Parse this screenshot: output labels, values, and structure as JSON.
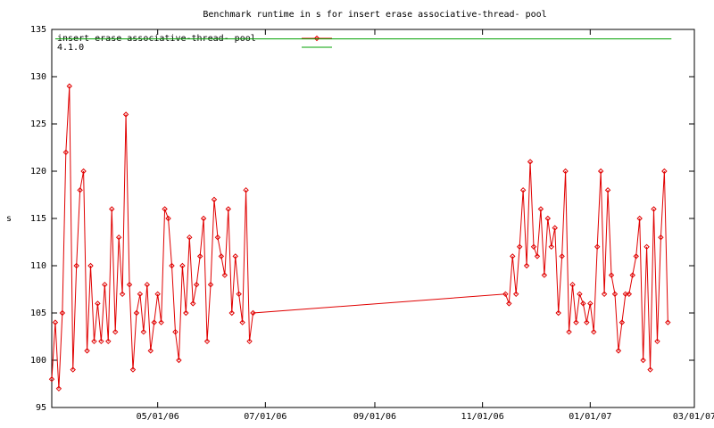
{
  "chart_data": {
    "type": "line",
    "title": "Benchmark runtime in s for insert erase associative-thread-  pool",
    "y_label": "s",
    "xlim": [
      "03/02/06",
      "03/01/07"
    ],
    "xticks": [
      "05/01/06",
      "07/01/06",
      "09/01/06",
      "11/01/06",
      "01/01/07",
      "03/01/07"
    ],
    "ylim": [
      95,
      135
    ],
    "yticks": [
      95,
      100,
      105,
      110,
      115,
      120,
      125,
      130,
      135
    ],
    "legend": "upper left",
    "series": [
      {
        "name": "insert erase associative-thread-  pool",
        "color": "#e00000",
        "text_color": "#8b4513",
        "marker": "diamond",
        "x": [
          "03/02/06",
          "03/04/06",
          "03/06/06",
          "03/08/06",
          "03/10/06",
          "03/12/06",
          "03/14/06",
          "03/16/06",
          "03/18/06",
          "03/20/06",
          "03/22/06",
          "03/24/06",
          "03/26/06",
          "03/28/06",
          "03/30/06",
          "04/01/06",
          "04/03/06",
          "04/05/06",
          "04/07/06",
          "04/09/06",
          "04/11/06",
          "04/13/06",
          "04/15/06",
          "04/17/06",
          "04/19/06",
          "04/21/06",
          "04/23/06",
          "04/25/06",
          "04/27/06",
          "04/29/06",
          "05/01/06",
          "05/03/06",
          "05/05/06",
          "05/07/06",
          "05/09/06",
          "05/11/06",
          "05/13/06",
          "05/15/06",
          "05/17/06",
          "05/19/06",
          "05/21/06",
          "05/23/06",
          "05/25/06",
          "05/27/06",
          "05/29/06",
          "05/31/06",
          "06/02/06",
          "06/04/06",
          "06/06/06",
          "06/08/06",
          "06/10/06",
          "06/12/06",
          "06/14/06",
          "06/16/06",
          "06/18/06",
          "06/20/06",
          "06/22/06",
          "06/24/06",
          "11/14/06",
          "11/16/06",
          "11/18/06",
          "11/20/06",
          "11/22/06",
          "11/24/06",
          "11/26/06",
          "11/28/06",
          "11/30/06",
          "12/02/06",
          "12/04/06",
          "12/06/06",
          "12/08/06",
          "12/10/06",
          "12/12/06",
          "12/14/06",
          "12/16/06",
          "12/18/06",
          "12/20/06",
          "12/22/06",
          "12/24/06",
          "12/26/06",
          "12/28/06",
          "12/30/06",
          "01/01/07",
          "01/03/07",
          "01/05/07",
          "01/07/07",
          "01/09/07",
          "01/11/07",
          "01/13/07",
          "01/15/07",
          "01/17/07",
          "01/19/07",
          "01/21/07",
          "01/23/07",
          "01/25/07",
          "01/27/07",
          "01/29/07",
          "01/31/07",
          "02/02/07",
          "02/04/07",
          "02/06/07",
          "02/08/07",
          "02/10/07",
          "02/12/07",
          "02/14/07"
        ],
        "values": [
          98,
          104,
          97,
          105,
          122,
          129,
          99,
          110,
          118,
          120,
          101,
          110,
          102,
          106,
          102,
          108,
          102,
          116,
          103,
          113,
          107,
          126,
          108,
          99,
          105,
          107,
          103,
          108,
          101,
          104,
          107,
          104,
          116,
          115,
          110,
          103,
          100,
          110,
          105,
          113,
          106,
          108,
          111,
          115,
          102,
          108,
          117,
          113,
          111,
          109,
          116,
          105,
          111,
          107,
          104,
          118,
          102,
          105,
          107,
          106,
          111,
          107,
          112,
          118,
          110,
          121,
          112,
          111,
          116,
          109,
          115,
          112,
          114,
          105,
          111,
          120,
          103,
          108,
          104,
          107,
          106,
          104,
          106,
          103,
          112,
          120,
          107,
          118,
          109,
          107,
          101,
          104,
          107,
          107,
          109,
          111,
          115,
          100,
          112,
          99,
          116,
          102,
          113,
          120,
          104
        ]
      },
      {
        "name": "4.1.0",
        "color": "#00a000",
        "text_color": "#00a000",
        "marker": "none",
        "x": [
          "03/04/06",
          "02/16/07"
        ],
        "values": [
          134,
          134
        ]
      }
    ]
  }
}
